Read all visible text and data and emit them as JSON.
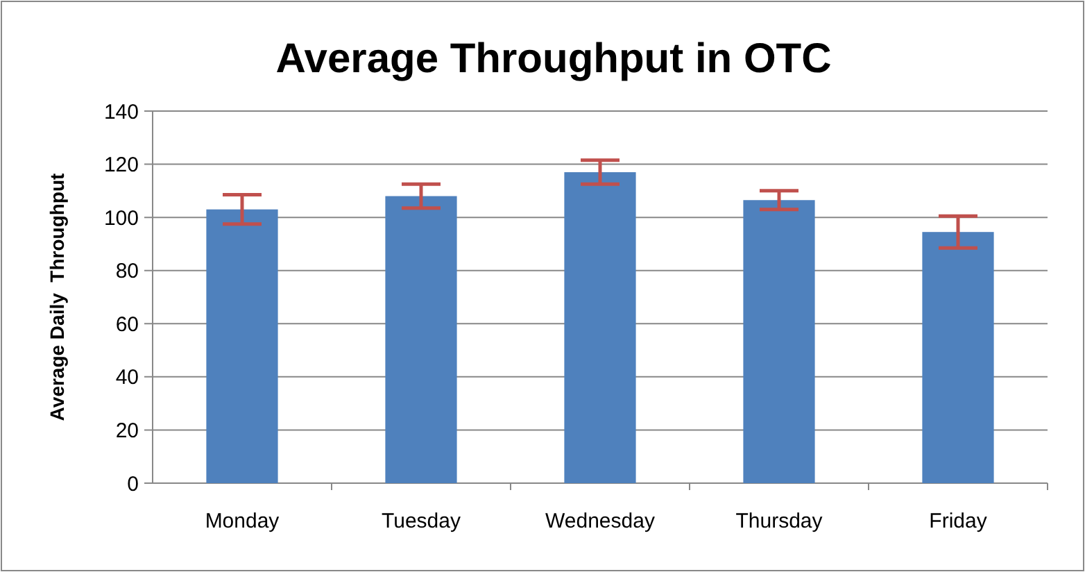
{
  "chart_data": {
    "type": "bar",
    "title": "Average Throughput in OTC",
    "ylabel": "Average Daily  Throughput",
    "categories": [
      "Monday",
      "Tuesday",
      "Wednesday",
      "Thursday",
      "Friday"
    ],
    "values": [
      103,
      108,
      117,
      106.5,
      94.5
    ],
    "errors": [
      5.5,
      4.5,
      4.5,
      3.5,
      6
    ],
    "color": "#4f81bd",
    "ylim": [
      0,
      140
    ],
    "yticks": [
      0,
      20,
      40,
      60,
      80,
      100,
      120,
      140
    ],
    "grid": "y"
  }
}
